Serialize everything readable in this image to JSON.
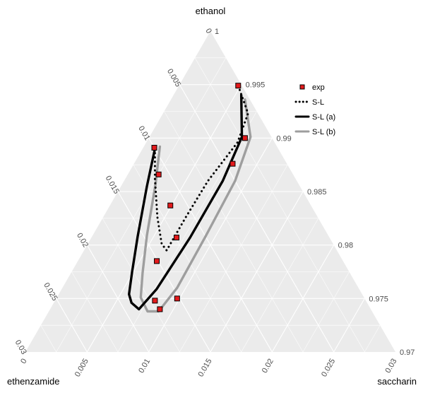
{
  "chart_data": {
    "type": "ternary",
    "axes": {
      "top": {
        "label": "ethanol",
        "range": [
          0.97,
          1.0
        ]
      },
      "left": {
        "label": "ethenzamide",
        "range": [
          0.0,
          0.03
        ]
      },
      "right": {
        "label": "saccharin",
        "range": [
          0.0,
          0.03
        ]
      }
    },
    "ticks": {
      "ethanol": [
        "1",
        "0.995",
        "0.99",
        "0.985",
        "0.98",
        "0.975",
        "0.97"
      ],
      "ethenzamide": [
        "0",
        "0.005",
        "0.01",
        "0.015",
        "0.02",
        "0.025",
        "0.03"
      ],
      "saccharin": [
        "0",
        "0.005",
        "0.01",
        "0.015",
        "0.02",
        "0.025",
        "0.03"
      ]
    },
    "grid": true,
    "legend_position": "top-right",
    "legend": [
      {
        "label": "exp",
        "kind": "point",
        "color": "#e31a1c"
      },
      {
        "label": "S-L",
        "kind": "dotted",
        "color": "#000000"
      },
      {
        "label": "S-L (a)",
        "kind": "solid",
        "color": "#000000"
      },
      {
        "label": "S-L (b)",
        "kind": "solid",
        "color": "#9e9e9e"
      }
    ],
    "series": [
      {
        "name": "exp",
        "style": "point",
        "color": "#e31a1c",
        "points": [
          {
            "ethenzamide": 0.0003,
            "saccharin": 0.0048
          },
          {
            "ethenzamide": 0.0022,
            "saccharin": 0.0078
          },
          {
            "ethenzamide": 0.0044,
            "saccharin": 0.008
          },
          {
            "ethenzamide": 0.01,
            "saccharin": 0.0009
          },
          {
            "ethenzamide": 0.0109,
            "saccharin": 0.0025
          },
          {
            "ethenzamide": 0.0114,
            "saccharin": 0.0049
          },
          {
            "ethenzamide": 0.0124,
            "saccharin": 0.0069
          },
          {
            "ethenzamide": 0.0151,
            "saccharin": 0.0064
          },
          {
            "ethenzamide": 0.0152,
            "saccharin": 0.0098
          },
          {
            "ethenzamide": 0.0171,
            "saccharin": 0.0081
          },
          {
            "ethenzamide": 0.0171,
            "saccharin": 0.0089
          }
        ]
      },
      {
        "name": "S-L",
        "style": "dotted",
        "color": "#000000",
        "points": [
          {
            "ethenzamide": 0.01,
            "saccharin": 0.001
          },
          {
            "ethenzamide": 0.0114,
            "saccharin": 0.0024
          },
          {
            "ethenzamide": 0.013,
            "saccharin": 0.0044
          },
          {
            "ethenzamide": 0.0139,
            "saccharin": 0.006
          },
          {
            "ethenzamide": 0.0138,
            "saccharin": 0.0067
          },
          {
            "ethenzamide": 0.0107,
            "saccharin": 0.0067
          },
          {
            "ethenzamide": 0.0072,
            "saccharin": 0.0068
          },
          {
            "ethenzamide": 0.003,
            "saccharin": 0.0074
          },
          {
            "ethenzamide": 0.0008,
            "saccharin": 0.0069
          },
          {
            "ethenzamide": 0.0003,
            "saccharin": 0.0048
          }
        ]
      },
      {
        "name": "S-L (a)",
        "style": "solid",
        "color": "#000000",
        "points": [
          {
            "ethenzamide": 0.01,
            "saccharin": 0.001
          },
          {
            "ethenzamide": 0.0124,
            "saccharin": 0.0021
          },
          {
            "ethenzamide": 0.0155,
            "saccharin": 0.0037
          },
          {
            "ethenzamide": 0.0176,
            "saccharin": 0.0049
          },
          {
            "ethenzamide": 0.0189,
            "saccharin": 0.0057
          },
          {
            "ethenzamide": 0.0191,
            "saccharin": 0.0063
          },
          {
            "ethenzamide": 0.0188,
            "saccharin": 0.0072
          },
          {
            "ethenzamide": 0.0164,
            "saccharin": 0.0077
          },
          {
            "ethenzamide": 0.0113,
            "saccharin": 0.008
          },
          {
            "ethenzamide": 0.006,
            "saccharin": 0.008
          },
          {
            "ethenzamide": 0.0024,
            "saccharin": 0.0075
          },
          {
            "ethenzamide": 0.0005,
            "saccharin": 0.0055
          }
        ]
      },
      {
        "name": "S-L (b)",
        "style": "solid",
        "color": "#9e9e9e",
        "points": [
          {
            "ethenzamide": 0.0095,
            "saccharin": 0.0013
          },
          {
            "ethenzamide": 0.0116,
            "saccharin": 0.0027
          },
          {
            "ethenzamide": 0.0147,
            "saccharin": 0.0044
          },
          {
            "ethenzamide": 0.0168,
            "saccharin": 0.0058
          },
          {
            "ethenzamide": 0.0181,
            "saccharin": 0.0068
          },
          {
            "ethenzamide": 0.0182,
            "saccharin": 0.008
          },
          {
            "ethenzamide": 0.0173,
            "saccharin": 0.0089
          },
          {
            "ethenzamide": 0.0147,
            "saccharin": 0.0093
          },
          {
            "ethenzamide": 0.01,
            "saccharin": 0.0092
          },
          {
            "ethenzamide": 0.005,
            "saccharin": 0.009
          },
          {
            "ethenzamide": 0.0017,
            "saccharin": 0.0082
          },
          {
            "ethenzamide": 0.0004,
            "saccharin": 0.006
          }
        ]
      }
    ]
  }
}
